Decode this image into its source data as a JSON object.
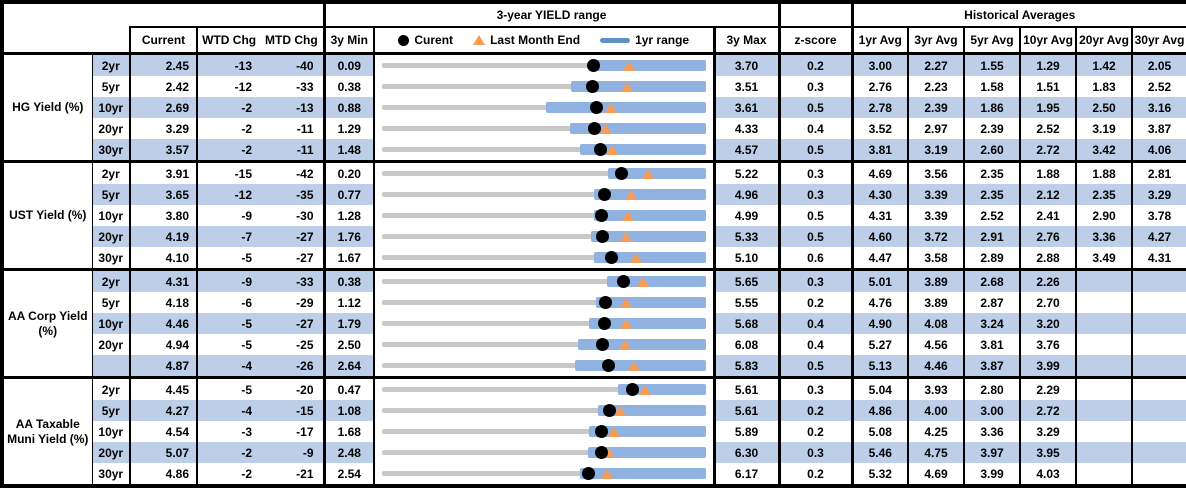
{
  "header": {
    "range_title": "3-year YIELD range",
    "hist_title": "Historical Averages",
    "col_current": "Current",
    "col_wtd": "WTD Chg",
    "col_mtd": "MTD Chg",
    "col_min": "3y Min",
    "col_max": "3y Max",
    "col_z": "z-score",
    "avg_cols": [
      "1yr Avg",
      "3yr Avg",
      "5yr Avg",
      "10yr Avg",
      "20yr Avg",
      "30yr Avg"
    ],
    "legend": {
      "current": "Curent",
      "last_month": "Last Month End",
      "range": "1yr range"
    }
  },
  "icons": {
    "current_marker": "black-circle",
    "last_month_marker": "orange-triangle",
    "range_marker": "blue-dash"
  },
  "colors": {
    "band": "#BCCEE8",
    "bar": "#8FB2E0",
    "track": "#C8C8C8",
    "marker_current": "#000000",
    "marker_last_month": "#F79C52",
    "legend_dash": "#6090C8"
  },
  "chart_data": {
    "type": "table",
    "note": "Each row has an inline bullet chart: gray track spans 3y Min..3y Max, blue bar is 1yr range (est.), black dot = Current, orange triangle = Last Month End (Current - MTD chg).",
    "groups": [
      {
        "label": "HG Yield (%)",
        "rows": [
          {
            "tenor": "2yr",
            "current": "2.45",
            "wtd": "-13",
            "mtd": "-40",
            "min3y": "0.09",
            "max3y": "3.70",
            "zscore": "0.2",
            "avgs": [
              "3.00",
              "2.27",
              "1.55",
              "1.29",
              "1.42",
              "2.05"
            ],
            "range": {
              "min": 0.09,
              "max": 3.7,
              "current": 2.45,
              "last_month_end": 2.85,
              "bar_lo": 2.4,
              "bar_hi": 3.7
            }
          },
          {
            "tenor": "5yr",
            "current": "2.42",
            "wtd": "-12",
            "mtd": "-33",
            "min3y": "0.38",
            "max3y": "3.51",
            "zscore": "0.3",
            "avgs": [
              "2.76",
              "2.23",
              "1.58",
              "1.51",
              "1.83",
              "2.52"
            ],
            "range": {
              "min": 0.38,
              "max": 3.51,
              "current": 2.42,
              "last_month_end": 2.75,
              "bar_lo": 2.21,
              "bar_hi": 3.51
            }
          },
          {
            "tenor": "10yr",
            "current": "2.69",
            "wtd": "-2",
            "mtd": "-13",
            "min3y": "0.88",
            "max3y": "3.61",
            "zscore": "0.5",
            "avgs": [
              "2.78",
              "2.39",
              "1.86",
              "1.95",
              "2.50",
              "3.16"
            ],
            "range": {
              "min": 0.88,
              "max": 3.61,
              "current": 2.69,
              "last_month_end": 2.82,
              "bar_lo": 2.26,
              "bar_hi": 3.61
            }
          },
          {
            "tenor": "20yr",
            "current": "3.29",
            "wtd": "-2",
            "mtd": "-11",
            "min3y": "1.29",
            "max3y": "4.33",
            "zscore": "0.4",
            "avgs": [
              "3.52",
              "2.97",
              "2.39",
              "2.52",
              "3.19",
              "3.87"
            ],
            "range": {
              "min": 1.29,
              "max": 4.33,
              "current": 3.29,
              "last_month_end": 3.4,
              "bar_lo": 3.06,
              "bar_hi": 4.33
            }
          },
          {
            "tenor": "30yr",
            "current": "3.57",
            "wtd": "-2",
            "mtd": "-11",
            "min3y": "1.48",
            "max3y": "4.57",
            "zscore": "0.5",
            "avgs": [
              "3.81",
              "3.19",
              "2.60",
              "2.72",
              "3.42",
              "4.06"
            ],
            "range": {
              "min": 1.48,
              "max": 4.57,
              "current": 3.57,
              "last_month_end": 3.68,
              "bar_lo": 3.37,
              "bar_hi": 4.57
            }
          }
        ]
      },
      {
        "label": "UST Yield (%)",
        "rows": [
          {
            "tenor": "2yr",
            "current": "3.91",
            "wtd": "-15",
            "mtd": "-42",
            "min3y": "0.20",
            "max3y": "5.22",
            "zscore": "0.3",
            "avgs": [
              "4.69",
              "3.56",
              "2.35",
              "1.88",
              "1.88",
              "2.81"
            ],
            "range": {
              "min": 0.2,
              "max": 5.22,
              "current": 3.91,
              "last_month_end": 4.33,
              "bar_lo": 3.71,
              "bar_hi": 5.22
            }
          },
          {
            "tenor": "5yr",
            "current": "3.65",
            "wtd": "-12",
            "mtd": "-35",
            "min3y": "0.77",
            "max3y": "4.96",
            "zscore": "0.3",
            "avgs": [
              "4.30",
              "3.39",
              "2.35",
              "2.12",
              "2.35",
              "3.29"
            ],
            "range": {
              "min": 0.77,
              "max": 4.96,
              "current": 3.65,
              "last_month_end": 4.0,
              "bar_lo": 3.51,
              "bar_hi": 4.96
            }
          },
          {
            "tenor": "10yr",
            "current": "3.80",
            "wtd": "-9",
            "mtd": "-30",
            "min3y": "1.28",
            "max3y": "4.99",
            "zscore": "0.5",
            "avgs": [
              "4.31",
              "3.39",
              "2.52",
              "2.41",
              "2.90",
              "3.78"
            ],
            "range": {
              "min": 1.28,
              "max": 4.99,
              "current": 3.8,
              "last_month_end": 4.1,
              "bar_lo": 3.71,
              "bar_hi": 4.99
            }
          },
          {
            "tenor": "20yr",
            "current": "4.19",
            "wtd": "-7",
            "mtd": "-27",
            "min3y": "1.76",
            "max3y": "5.33",
            "zscore": "0.5",
            "avgs": [
              "4.60",
              "3.72",
              "2.91",
              "2.76",
              "3.36",
              "4.27"
            ],
            "range": {
              "min": 1.76,
              "max": 5.33,
              "current": 4.19,
              "last_month_end": 4.46,
              "bar_lo": 4.07,
              "bar_hi": 5.33
            }
          },
          {
            "tenor": "30yr",
            "current": "4.10",
            "wtd": "-5",
            "mtd": "-27",
            "min3y": "1.67",
            "max3y": "5.10",
            "zscore": "0.6",
            "avgs": [
              "4.47",
              "3.58",
              "2.89",
              "2.88",
              "3.49",
              "4.31"
            ],
            "range": {
              "min": 1.67,
              "max": 5.1,
              "current": 4.1,
              "last_month_end": 4.37,
              "bar_lo": 3.92,
              "bar_hi": 5.1
            }
          }
        ]
      },
      {
        "label": "AA Corp Yield (%)",
        "rows": [
          {
            "tenor": "2yr",
            "current": "4.31",
            "wtd": "-9",
            "mtd": "-33",
            "min3y": "0.38",
            "max3y": "5.65",
            "zscore": "0.3",
            "avgs": [
              "5.01",
              "3.89",
              "2.68",
              "2.26",
              "",
              ""
            ],
            "range": {
              "min": 0.38,
              "max": 5.65,
              "current": 4.31,
              "last_month_end": 4.64,
              "bar_lo": 4.05,
              "bar_hi": 5.65
            }
          },
          {
            "tenor": "5yr",
            "current": "4.18",
            "wtd": "-6",
            "mtd": "-29",
            "min3y": "1.12",
            "max3y": "5.55",
            "zscore": "0.2",
            "avgs": [
              "4.76",
              "3.89",
              "2.87",
              "2.70",
              "",
              ""
            ],
            "range": {
              "min": 1.12,
              "max": 5.55,
              "current": 4.18,
              "last_month_end": 4.47,
              "bar_lo": 4.05,
              "bar_hi": 5.55
            }
          },
          {
            "tenor": "10yr",
            "current": "4.46",
            "wtd": "-5",
            "mtd": "-27",
            "min3y": "1.79",
            "max3y": "5.68",
            "zscore": "0.4",
            "avgs": [
              "4.90",
              "4.08",
              "3.24",
              "3.20",
              "",
              ""
            ],
            "range": {
              "min": 1.79,
              "max": 5.68,
              "current": 4.46,
              "last_month_end": 4.73,
              "bar_lo": 4.28,
              "bar_hi": 5.68
            }
          },
          {
            "tenor": "20yr",
            "current": "4.94",
            "wtd": "-5",
            "mtd": "-25",
            "min3y": "2.50",
            "max3y": "6.08",
            "zscore": "0.4",
            "avgs": [
              "5.27",
              "4.56",
              "3.81",
              "3.76",
              "",
              ""
            ],
            "range": {
              "min": 2.5,
              "max": 6.08,
              "current": 4.94,
              "last_month_end": 5.19,
              "bar_lo": 4.67,
              "bar_hi": 6.08
            }
          },
          {
            "tenor": "",
            "current": "4.87",
            "wtd": "-4",
            "mtd": "-26",
            "min3y": "2.64",
            "max3y": "5.83",
            "zscore": "0.5",
            "avgs": [
              "5.13",
              "4.46",
              "3.87",
              "3.99",
              "",
              ""
            ],
            "range": {
              "min": 2.64,
              "max": 5.83,
              "current": 4.87,
              "last_month_end": 5.13,
              "bar_lo": 4.54,
              "bar_hi": 5.83
            }
          }
        ]
      },
      {
        "label": "AA Taxable Muni Yield (%)",
        "rows": [
          {
            "tenor": "2yr",
            "current": "4.45",
            "wtd": "-5",
            "mtd": "-20",
            "min3y": "0.47",
            "max3y": "5.61",
            "zscore": "0.3",
            "avgs": [
              "5.04",
              "3.93",
              "2.80",
              "2.29",
              "",
              ""
            ],
            "range": {
              "min": 0.47,
              "max": 5.61,
              "current": 4.45,
              "last_month_end": 4.65,
              "bar_lo": 4.22,
              "bar_hi": 5.61
            }
          },
          {
            "tenor": "5yr",
            "current": "4.27",
            "wtd": "-4",
            "mtd": "-15",
            "min3y": "1.08",
            "max3y": "5.61",
            "zscore": "0.2",
            "avgs": [
              "4.86",
              "4.00",
              "3.00",
              "2.72",
              "",
              ""
            ],
            "range": {
              "min": 1.08,
              "max": 5.61,
              "current": 4.27,
              "last_month_end": 4.42,
              "bar_lo": 4.1,
              "bar_hi": 5.61
            }
          },
          {
            "tenor": "10yr",
            "current": "4.54",
            "wtd": "-3",
            "mtd": "-17",
            "min3y": "1.68",
            "max3y": "5.89",
            "zscore": "0.2",
            "avgs": [
              "5.08",
              "4.25",
              "3.36",
              "3.29",
              "",
              ""
            ],
            "range": {
              "min": 1.68,
              "max": 5.89,
              "current": 4.54,
              "last_month_end": 4.71,
              "bar_lo": 4.37,
              "bar_hi": 5.89
            }
          },
          {
            "tenor": "20yr",
            "current": "5.07",
            "wtd": "-2",
            "mtd": "-9",
            "min3y": "2.48",
            "max3y": "6.30",
            "zscore": "0.3",
            "avgs": [
              "5.46",
              "4.75",
              "3.97",
              "3.95",
              "",
              ""
            ],
            "range": {
              "min": 2.48,
              "max": 6.3,
              "current": 5.07,
              "last_month_end": 5.16,
              "bar_lo": 4.91,
              "bar_hi": 6.3
            }
          },
          {
            "tenor": "30yr",
            "current": "4.86",
            "wtd": "-2",
            "mtd": "-21",
            "min3y": "2.54",
            "max3y": "6.17",
            "zscore": "0.2",
            "avgs": [
              "5.32",
              "4.69",
              "3.99",
              "4.03",
              "",
              ""
            ],
            "range": {
              "min": 2.54,
              "max": 6.17,
              "current": 4.86,
              "last_month_end": 5.07,
              "bar_lo": 4.76,
              "bar_hi": 6.17
            }
          }
        ]
      }
    ]
  }
}
